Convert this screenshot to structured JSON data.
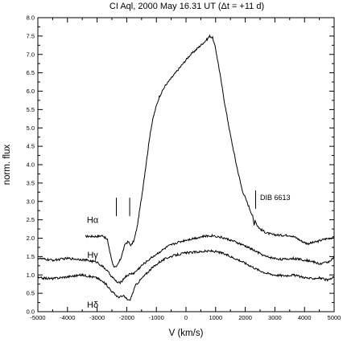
{
  "chart_data": {
    "type": "line",
    "title": "CI Aql, 2000 May 16.31 UT (Δt = +11 d)",
    "xlabel": "V (km/s)",
    "ylabel": "norm. flux",
    "xlim": [
      -5000,
      5000
    ],
    "ylim": [
      0.0,
      8.0
    ],
    "x_ticks": [
      -5000,
      -4000,
      -3000,
      -2000,
      -1000,
      0,
      1000,
      2000,
      3000,
      4000,
      5000
    ],
    "x_tick_labels": [
      "-5000",
      "-4000",
      "-3000",
      "-2000",
      "-1000",
      "0",
      "1000",
      "2000",
      "3000",
      "4000",
      "5000"
    ],
    "y_ticks": [
      0.0,
      0.5,
      1.0,
      1.5,
      2.0,
      2.5,
      3.0,
      3.5,
      4.0,
      4.5,
      5.0,
      5.5,
      6.0,
      6.5,
      7.0,
      7.5,
      8.0
    ],
    "y_tick_labels": [
      "0.0",
      "0.5",
      "1.0",
      "1.5",
      "2.0",
      "2.5",
      "3.0",
      "3.5",
      "4.0",
      "4.5",
      "5.0",
      "5.5",
      "6.0",
      "6.5",
      "7.0",
      "7.5",
      "8.0"
    ],
    "grid": false,
    "series": [
      {
        "name": "Hα",
        "x": [
          -3400,
          -3000,
          -2800,
          -2650,
          -2550,
          -2450,
          -2350,
          -2200,
          -2050,
          -1950,
          -1850,
          -1750,
          -1650,
          -1500,
          -1400,
          -1300,
          -1200,
          -1100,
          -1000,
          -900,
          -800,
          -700,
          -500,
          -300,
          -100,
          100,
          300,
          500,
          700,
          800,
          900,
          1000,
          1100,
          1200,
          1300,
          1500,
          1700,
          1900,
          2100,
          2250,
          2300,
          2330,
          2400,
          2500,
          2700,
          2900,
          3200,
          3500,
          3700,
          3900,
          4100,
          4400,
          4700,
          5000
        ],
        "y": [
          2.05,
          2.05,
          2.07,
          1.95,
          1.55,
          1.25,
          1.2,
          1.45,
          1.85,
          1.9,
          1.8,
          1.95,
          2.3,
          3.1,
          3.7,
          4.3,
          4.9,
          5.3,
          5.6,
          5.85,
          6.0,
          6.15,
          6.35,
          6.55,
          6.75,
          6.95,
          7.1,
          7.25,
          7.4,
          7.5,
          7.45,
          7.15,
          6.7,
          6.2,
          5.7,
          4.8,
          4.0,
          3.3,
          2.9,
          2.6,
          2.35,
          2.5,
          2.35,
          2.25,
          2.15,
          2.1,
          2.08,
          2.08,
          2.02,
          1.92,
          1.85,
          1.9,
          1.98,
          2.02
        ]
      },
      {
        "name": "Hγ",
        "x": [
          -5000,
          -4500,
          -4000,
          -3500,
          -3000,
          -2700,
          -2500,
          -2300,
          -2200,
          -2050,
          -1900,
          -1750,
          -1500,
          -1200,
          -900,
          -600,
          -300,
          0,
          300,
          600,
          900,
          1200,
          1500,
          1800,
          2100,
          2400,
          2700,
          3000,
          3300,
          3600,
          3900,
          4200,
          4500,
          4800,
          5000
        ],
        "y": [
          1.45,
          1.4,
          1.45,
          1.42,
          1.35,
          1.15,
          0.95,
          0.78,
          0.8,
          0.95,
          1.02,
          1.05,
          1.25,
          1.45,
          1.62,
          1.78,
          1.88,
          1.95,
          2.0,
          2.05,
          2.07,
          2.02,
          1.95,
          1.85,
          1.75,
          1.62,
          1.5,
          1.45,
          1.42,
          1.45,
          1.42,
          1.38,
          1.3,
          1.35,
          1.48
        ]
      },
      {
        "name": "Hδ",
        "x": [
          -5000,
          -4500,
          -4000,
          -3500,
          -3000,
          -2700,
          -2500,
          -2300,
          -2100,
          -2000,
          -1900,
          -1800,
          -1700,
          -1500,
          -1200,
          -900,
          -600,
          -300,
          0,
          300,
          600,
          900,
          1200,
          1500,
          1800,
          2100,
          2400,
          2700,
          3000,
          3300,
          3600,
          3900,
          4200,
          4500,
          4800,
          5000
        ],
        "y": [
          0.92,
          0.9,
          0.95,
          1.0,
          0.92,
          0.75,
          0.55,
          0.4,
          0.42,
          0.35,
          0.3,
          0.5,
          0.72,
          0.9,
          1.15,
          1.35,
          1.48,
          1.55,
          1.6,
          1.62,
          1.64,
          1.65,
          1.6,
          1.5,
          1.4,
          1.28,
          1.15,
          1.05,
          1.0,
          0.98,
          1.0,
          0.95,
          0.9,
          0.92,
          0.85,
          0.95
        ]
      }
    ],
    "series_labels": [
      {
        "text": "Hα",
        "x": -3150,
        "y": 2.5
      },
      {
        "text": "Hγ",
        "x": -3150,
        "y": 1.55
      },
      {
        "text": "Hδ",
        "x": -3150,
        "y": 0.2
      }
    ],
    "annotations": [
      {
        "type": "tick",
        "x": -1900,
        "y0": 2.6,
        "y1": 3.1
      },
      {
        "type": "tick",
        "x": -2350,
        "y0": 2.6,
        "y1": 3.1
      },
      {
        "type": "tick",
        "x": 2350,
        "y0": 2.8,
        "y1": 3.3
      },
      {
        "type": "label",
        "text": "DIB 6613",
        "x": 2500,
        "y": 3.1
      }
    ]
  }
}
